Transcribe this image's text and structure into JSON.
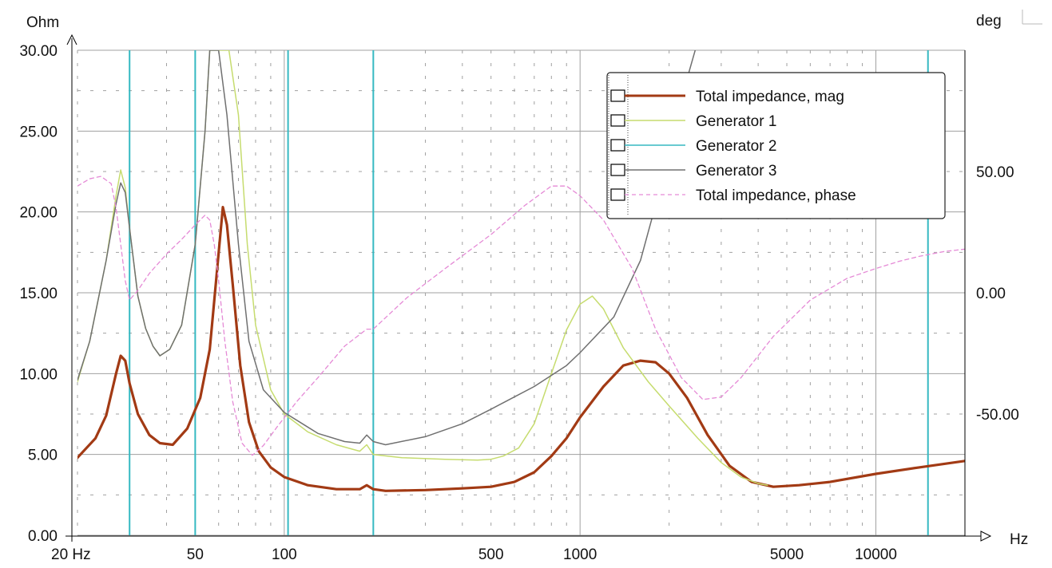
{
  "chart_data": {
    "type": "line",
    "x_scale": "log",
    "grid": true,
    "legend_position": "top-right",
    "left_axis_label": "Ohm",
    "right_axis_label": "deg",
    "x_axis_label": "Hz",
    "xlim": [
      20,
      20000
    ],
    "ylim_left": [
      0,
      30
    ],
    "ylim_right": [
      -100,
      100
    ],
    "x_tick_labels": [
      {
        "value": 20,
        "label": "20 Hz"
      },
      {
        "value": 50,
        "label": "50"
      },
      {
        "value": 100,
        "label": "100"
      },
      {
        "value": 500,
        "label": "500"
      },
      {
        "value": 1000,
        "label": "1000"
      },
      {
        "value": 5000,
        "label": "5000"
      },
      {
        "value": 10000,
        "label": "10000"
      }
    ],
    "left_tick_labels": [
      {
        "value": 30,
        "label": "30.00"
      },
      {
        "value": 25,
        "label": "25.00"
      },
      {
        "value": 20,
        "label": "20.00"
      },
      {
        "value": 15,
        "label": "15.00"
      },
      {
        "value": 10,
        "label": "10.00"
      },
      {
        "value": 5,
        "label": "5.00"
      },
      {
        "value": 0,
        "label": "0.00"
      }
    ],
    "right_tick_labels": [
      {
        "value": 50,
        "label": "50.00"
      },
      {
        "value": 0,
        "label": "0.00"
      },
      {
        "value": -50,
        "label": "-50.00"
      }
    ],
    "vertical_markers_hz": [
      30,
      50,
      103,
      200,
      15000
    ],
    "colors": {
      "grid": "#a0a0a0",
      "marker": "#36b9c2",
      "total_mag": "#a23a14",
      "gen1": "#c6dc6e",
      "gen2": "#36b9c2",
      "gen3": "#707070",
      "phase": "#e58ad6"
    },
    "series": [
      {
        "name": "Total impedance, mag",
        "axis": "left",
        "color": "#a23a14",
        "style": "solid-thick",
        "points": [
          [
            20,
            4.8
          ],
          [
            23,
            6.0
          ],
          [
            25,
            7.4
          ],
          [
            27,
            10.0
          ],
          [
            28,
            11.1
          ],
          [
            29,
            10.8
          ],
          [
            30,
            9.4
          ],
          [
            32,
            7.5
          ],
          [
            35,
            6.2
          ],
          [
            38,
            5.7
          ],
          [
            42,
            5.6
          ],
          [
            47,
            6.6
          ],
          [
            52,
            8.5
          ],
          [
            56,
            11.5
          ],
          [
            59,
            16.0
          ],
          [
            62,
            20.3
          ],
          [
            64,
            19.2
          ],
          [
            67,
            15.5
          ],
          [
            71,
            10.5
          ],
          [
            76,
            7.0
          ],
          [
            82,
            5.2
          ],
          [
            90,
            4.2
          ],
          [
            100,
            3.6
          ],
          [
            120,
            3.1
          ],
          [
            150,
            2.85
          ],
          [
            180,
            2.85
          ],
          [
            190,
            3.1
          ],
          [
            200,
            2.85
          ],
          [
            220,
            2.75
          ],
          [
            300,
            2.8
          ],
          [
            400,
            2.9
          ],
          [
            500,
            3.0
          ],
          [
            600,
            3.3
          ],
          [
            700,
            3.9
          ],
          [
            800,
            4.9
          ],
          [
            900,
            6.0
          ],
          [
            1000,
            7.3
          ],
          [
            1200,
            9.2
          ],
          [
            1400,
            10.5
          ],
          [
            1600,
            10.8
          ],
          [
            1800,
            10.7
          ],
          [
            2000,
            10.0
          ],
          [
            2300,
            8.5
          ],
          [
            2700,
            6.2
          ],
          [
            3200,
            4.3
          ],
          [
            3800,
            3.3
          ],
          [
            4500,
            3.0
          ],
          [
            5500,
            3.1
          ],
          [
            7000,
            3.3
          ],
          [
            10000,
            3.8
          ],
          [
            14000,
            4.2
          ],
          [
            20000,
            4.6
          ]
        ]
      },
      {
        "name": "Generator 1",
        "axis": "left",
        "color": "#c6dc6e",
        "style": "solid-thin",
        "points": [
          [
            20,
            9.5
          ],
          [
            22,
            12.0
          ],
          [
            25,
            17.0
          ],
          [
            27,
            21.0
          ],
          [
            28,
            22.6
          ],
          [
            29,
            21.5
          ],
          [
            30,
            19.0
          ],
          [
            32,
            14.8
          ],
          [
            34,
            12.8
          ],
          [
            36,
            11.7
          ],
          [
            38,
            11.1
          ],
          [
            41,
            11.5
          ],
          [
            45,
            13.0
          ],
          [
            50,
            18.0
          ],
          [
            54,
            25.0
          ],
          [
            56,
            30.0
          ],
          [
            65,
            30.0
          ],
          [
            70,
            26.0
          ],
          [
            75,
            18.0
          ],
          [
            80,
            13.0
          ],
          [
            90,
            9.0
          ],
          [
            100,
            7.5
          ],
          [
            120,
            6.4
          ],
          [
            150,
            5.6
          ],
          [
            180,
            5.2
          ],
          [
            190,
            5.6
          ],
          [
            200,
            5.0
          ],
          [
            250,
            4.8
          ],
          [
            350,
            4.7
          ],
          [
            450,
            4.65
          ],
          [
            500,
            4.7
          ],
          [
            550,
            4.9
          ],
          [
            620,
            5.4
          ],
          [
            700,
            6.9
          ],
          [
            800,
            10.0
          ],
          [
            900,
            12.7
          ],
          [
            1000,
            14.3
          ],
          [
            1100,
            14.8
          ],
          [
            1200,
            14.0
          ],
          [
            1400,
            11.6
          ],
          [
            1700,
            9.5
          ],
          [
            2000,
            8.0
          ],
          [
            2500,
            6.0
          ],
          [
            3000,
            4.5
          ],
          [
            3500,
            3.6
          ],
          [
            4000,
            3.2
          ],
          [
            4300,
            3.1
          ]
        ]
      },
      {
        "name": "Generator 2",
        "axis": "left",
        "color": "#36b9c2",
        "style": "solid-thin",
        "points": []
      },
      {
        "name": "Generator 3",
        "axis": "left",
        "color": "#707070",
        "style": "solid-thin",
        "points": [
          [
            20,
            9.6
          ],
          [
            22,
            12.0
          ],
          [
            25,
            17.0
          ],
          [
            27,
            20.5
          ],
          [
            28,
            21.8
          ],
          [
            29,
            21.2
          ],
          [
            30,
            19.0
          ],
          [
            32,
            14.8
          ],
          [
            34,
            12.8
          ],
          [
            36,
            11.7
          ],
          [
            38,
            11.1
          ],
          [
            41,
            11.5
          ],
          [
            45,
            13.0
          ],
          [
            50,
            18.0
          ],
          [
            54,
            25.0
          ],
          [
            56,
            30.0
          ],
          [
            60,
            30.0
          ],
          [
            64,
            26.0
          ],
          [
            70,
            18.0
          ],
          [
            76,
            12.0
          ],
          [
            85,
            9.0
          ],
          [
            100,
            7.6
          ],
          [
            130,
            6.3
          ],
          [
            160,
            5.8
          ],
          [
            180,
            5.7
          ],
          [
            190,
            6.2
          ],
          [
            200,
            5.8
          ],
          [
            220,
            5.6
          ],
          [
            300,
            6.1
          ],
          [
            400,
            6.9
          ],
          [
            500,
            7.8
          ],
          [
            700,
            9.2
          ],
          [
            900,
            10.5
          ],
          [
            1000,
            11.3
          ],
          [
            1300,
            13.5
          ],
          [
            1600,
            17.0
          ],
          [
            1900,
            22.0
          ],
          [
            2200,
            27.0
          ],
          [
            2450,
            30.0
          ]
        ]
      },
      {
        "name": "Total impedance, phase",
        "axis": "right",
        "color": "#e58ad6",
        "style": "dashed",
        "points": [
          [
            20,
            44
          ],
          [
            22,
            47
          ],
          [
            24,
            48
          ],
          [
            26,
            45
          ],
          [
            27,
            35
          ],
          [
            28,
            20
          ],
          [
            29,
            5
          ],
          [
            30,
            -3
          ],
          [
            32,
            1
          ],
          [
            35,
            8
          ],
          [
            40,
            16
          ],
          [
            45,
            22
          ],
          [
            50,
            28
          ],
          [
            54,
            32
          ],
          [
            56,
            30
          ],
          [
            58,
            20
          ],
          [
            60,
            5
          ],
          [
            63,
            -20
          ],
          [
            67,
            -45
          ],
          [
            72,
            -62
          ],
          [
            78,
            -67
          ],
          [
            85,
            -63
          ],
          [
            95,
            -55
          ],
          [
            110,
            -45
          ],
          [
            130,
            -35
          ],
          [
            160,
            -22
          ],
          [
            190,
            -15
          ],
          [
            200,
            -15
          ],
          [
            260,
            -2
          ],
          [
            350,
            10
          ],
          [
            500,
            24
          ],
          [
            650,
            36
          ],
          [
            800,
            44
          ],
          [
            900,
            44
          ],
          [
            1000,
            40
          ],
          [
            1200,
            30
          ],
          [
            1500,
            10
          ],
          [
            1800,
            -15
          ],
          [
            2200,
            -35
          ],
          [
            2600,
            -44
          ],
          [
            3000,
            -43
          ],
          [
            3500,
            -35
          ],
          [
            4500,
            -18
          ],
          [
            6000,
            -3
          ],
          [
            8000,
            6
          ],
          [
            10000,
            10
          ],
          [
            12000,
            13
          ],
          [
            14000,
            15
          ],
          [
            17000,
            17
          ],
          [
            20000,
            18
          ]
        ]
      }
    ]
  }
}
